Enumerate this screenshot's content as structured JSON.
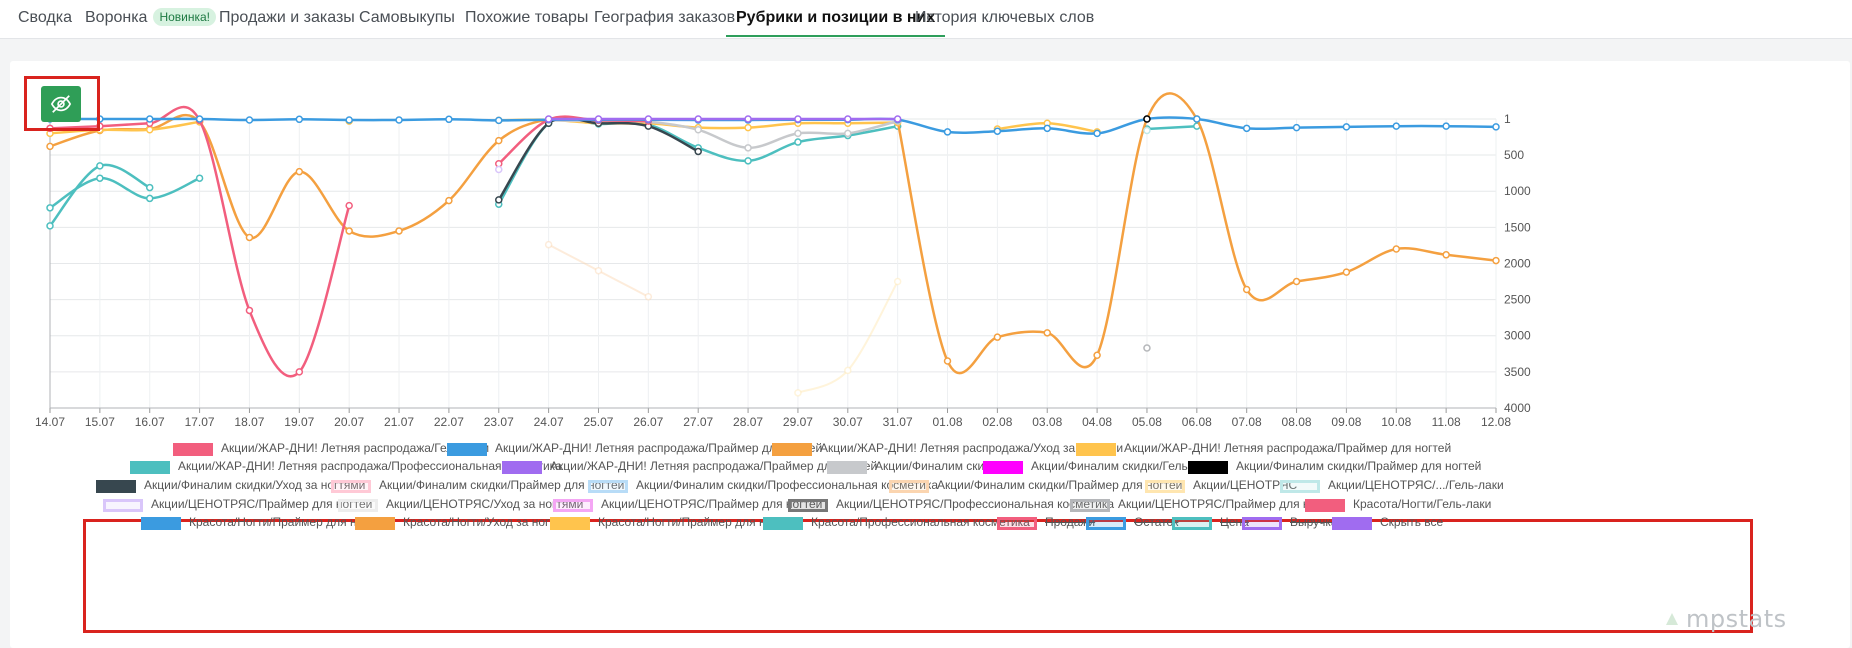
{
  "tabs": [
    {
      "label": "Сводка"
    },
    {
      "label": "Воронка",
      "badge": "Новинка!"
    },
    {
      "label": "Продажи и заказы"
    },
    {
      "label": "Самовыкупы"
    },
    {
      "label": "Похожие товары"
    },
    {
      "label": "География заказов"
    },
    {
      "label": "Рубрики и позиции в них",
      "active": true
    },
    {
      "label": "История ключевых слов"
    }
  ],
  "toggle_icon": "eye-off-icon",
  "logo": "mpstats",
  "chart_data": {
    "type": "line",
    "title": "",
    "xlabel": "",
    "ylabel": "",
    "y_reversed": true,
    "ylim": [
      1,
      4000
    ],
    "y_ticks": [
      1,
      500,
      1000,
      1500,
      2000,
      2500,
      3000,
      3500,
      4000
    ],
    "x": [
      "14.07",
      "15.07",
      "16.07",
      "17.07",
      "18.07",
      "19.07",
      "20.07",
      "21.07",
      "22.07",
      "23.07",
      "24.07",
      "25.07",
      "26.07",
      "27.07",
      "28.07",
      "29.07",
      "30.07",
      "31.07",
      "01.08",
      "02.08",
      "03.08",
      "04.08",
      "05.08",
      "06.08",
      "07.08",
      "08.08",
      "09.08",
      "10.08",
      "11.08",
      "12.08"
    ],
    "grid": true,
    "series": [
      {
        "name": "Акции/ЖАР-ДНИ! Летняя распродажа/Гель-лаки",
        "color": "#f25e7e",
        "values": [
          130,
          100,
          60,
          20,
          2650,
          3500,
          1200,
          null,
          null,
          620,
          10,
          20,
          30,
          null,
          null,
          null,
          null,
          null,
          null,
          null,
          null,
          null,
          null,
          null,
          null,
          null,
          null,
          null,
          null,
          null
        ]
      },
      {
        "name": "Акции/ЖАР-ДНИ! Летняя распродажа/Праймер для ногтей",
        "color": "#3b9be0",
        "values": [
          1,
          1,
          1,
          1,
          15,
          5,
          15,
          15,
          5,
          20,
          10,
          10,
          10,
          15,
          15,
          10,
          10,
          10,
          180,
          170,
          130,
          200,
          1,
          1,
          130,
          120,
          110,
          100,
          100,
          110
        ]
      },
      {
        "name": "Акции/ЖАР-ДНИ! Летняя распродажа/Уход за ногтями",
        "color": "#f4a040",
        "values": [
          380,
          160,
          140,
          40,
          1640,
          730,
          1550,
          1550,
          1130,
          300,
          5,
          50,
          70,
          null,
          null,
          null,
          null,
          30,
          3350,
          3020,
          2960,
          3270,
          1,
          1,
          2360,
          2250,
          2120,
          1800,
          1880,
          1960
        ]
      },
      {
        "name": "Акции/ЖАР-ДНИ! Летняя распродажа/Праймер для ногтей",
        "color": "#ffc44d",
        "values": [
          200,
          150,
          150,
          40,
          null,
          null,
          30,
          null,
          null,
          20,
          10,
          60,
          60,
          120,
          120,
          60,
          60,
          50,
          null,
          140,
          60,
          180,
          null,
          null,
          null,
          null,
          null,
          null,
          null,
          null
        ]
      },
      {
        "name": "Акции/ЖАР-ДНИ! Летняя распродажа/Профессиональная косметика",
        "color": "#4dbfbf",
        "values": [
          1480,
          650,
          950,
          null,
          null,
          null,
          null,
          null,
          null,
          1180,
          60,
          70,
          80,
          400,
          580,
          320,
          230,
          100,
          null,
          null,
          null,
          null,
          140,
          100,
          null,
          null,
          null,
          null,
          null,
          null
        ]
      },
      {
        "name": "Акции/ЖАР-ДНИ! Летняя распродажа/Праймер для ногтей",
        "color": "#a06cf0",
        "values": [
          null,
          null,
          null,
          null,
          null,
          null,
          null,
          null,
          null,
          null,
          1,
          1,
          1,
          1,
          1,
          1,
          1,
          1,
          null,
          null,
          null,
          null,
          null,
          null,
          null,
          null,
          null,
          null,
          null,
          null
        ]
      },
      {
        "name": "Акции/Финалим скидки",
        "color": "#c7c9cc",
        "values": [
          null,
          null,
          null,
          null,
          null,
          null,
          null,
          null,
          null,
          null,
          20,
          30,
          40,
          150,
          400,
          200,
          200,
          30,
          null,
          null,
          null,
          null,
          null,
          null,
          null,
          null,
          null,
          null,
          null,
          null
        ]
      },
      {
        "name": "Акции/Финалим скидки/Гель-лаки",
        "color": "#ff00ff",
        "values": [
          null,
          null,
          null,
          null,
          null,
          null,
          null,
          null,
          null,
          null,
          null,
          null,
          null,
          null,
          null,
          null,
          null,
          null,
          null,
          null,
          null,
          null,
          null,
          null,
          null,
          null,
          null,
          null,
          null,
          null
        ]
      },
      {
        "name": "Акции/Финалим скидки/Праймер для ногтей",
        "color": "#000000",
        "values": [
          null,
          null,
          null,
          null,
          null,
          null,
          null,
          null,
          null,
          null,
          null,
          null,
          null,
          null,
          null,
          null,
          null,
          null,
          null,
          null,
          null,
          null,
          1,
          null,
          null,
          null,
          null,
          null,
          null,
          null
        ]
      },
      {
        "name": "Акции/Финалим скидки/Уход за ногтями",
        "color": "#37474f",
        "values": [
          null,
          null,
          null,
          null,
          null,
          null,
          null,
          null,
          null,
          1120,
          60,
          60,
          100,
          450,
          null,
          null,
          null,
          null,
          null,
          null,
          null,
          null,
          null,
          null,
          null,
          null,
          null,
          null,
          null,
          null
        ]
      },
      {
        "name": "Акции/Финалим скидки/Праймер для ногтей",
        "color": "#ffc9d6",
        "values": [
          null,
          null,
          null,
          null,
          null,
          null,
          null,
          null,
          null,
          null,
          null,
          null,
          null,
          null,
          null,
          null,
          null,
          null,
          null,
          null,
          null,
          null,
          null,
          null,
          null,
          null,
          null,
          null,
          null,
          null
        ]
      },
      {
        "name": "Акции/Финалим скидки/Профессиональная косметика",
        "color": "#b8dcf7",
        "values": [
          null,
          null,
          null,
          null,
          null,
          null,
          null,
          null,
          null,
          null,
          null,
          null,
          null,
          null,
          null,
          null,
          null,
          null,
          null,
          null,
          null,
          null,
          null,
          null,
          null,
          null,
          null,
          null,
          null,
          null
        ]
      },
      {
        "name": "Акции/Финалим скидки/Праймер для ногтей",
        "color": "#fbd5b0",
        "values": [
          null,
          null,
          null,
          null,
          null,
          null,
          null,
          null,
          null,
          null,
          1740,
          2100,
          2460,
          null,
          null,
          null,
          null,
          null,
          null,
          null,
          null,
          null,
          null,
          null,
          null,
          null,
          null,
          null,
          null,
          null
        ]
      },
      {
        "name": "Акции/ЦЕНОТРЯС",
        "color": "#ffe6b0",
        "values": [
          null,
          null,
          null,
          null,
          null,
          null,
          null,
          null,
          null,
          null,
          null,
          null,
          null,
          null,
          null,
          3790,
          3480,
          2250,
          null,
          null,
          null,
          null,
          null,
          null,
          null,
          null,
          null,
          null,
          null,
          null
        ]
      },
      {
        "name": "Акции/ЦЕНОТРЯС/.../Гель-лаки",
        "color": "#bfe8e8",
        "values": [
          null,
          null,
          null,
          null,
          null,
          null,
          null,
          null,
          null,
          null,
          null,
          null,
          null,
          null,
          null,
          null,
          null,
          null,
          null,
          null,
          null,
          null,
          160,
          null,
          null,
          null,
          null,
          null,
          null,
          null
        ]
      },
      {
        "name": "Акции/ЦЕНОТРЯС/Праймер для ногтей",
        "color": "#d9c6fa",
        "values": [
          null,
          null,
          null,
          null,
          null,
          null,
          null,
          null,
          null,
          700,
          null,
          null,
          null,
          null,
          null,
          null,
          null,
          null,
          null,
          null,
          null,
          null,
          null,
          null,
          null,
          null,
          null,
          null,
          null,
          null
        ]
      },
      {
        "name": "Акции/ЦЕНОТРЯС/Уход за ногтями",
        "color": "#ededed",
        "values": [
          null,
          null,
          null,
          null,
          null,
          null,
          null,
          null,
          null,
          null,
          null,
          null,
          null,
          null,
          null,
          null,
          null,
          null,
          null,
          null,
          null,
          null,
          null,
          null,
          null,
          null,
          null,
          null,
          null,
          null
        ]
      },
      {
        "name": "Акции/ЦЕНОТРЯС/Праймер для ногтей",
        "color": "#f4a6f4",
        "values": [
          null,
          null,
          null,
          null,
          null,
          null,
          null,
          null,
          null,
          null,
          null,
          null,
          null,
          null,
          null,
          null,
          null,
          null,
          null,
          null,
          null,
          null,
          null,
          null,
          null,
          null,
          null,
          null,
          null,
          null
        ]
      },
      {
        "name": "Акции/ЦЕНОТРЯС/Профессиональная косметика",
        "color": "#777777",
        "values": [
          null,
          null,
          null,
          null,
          null,
          null,
          null,
          null,
          null,
          null,
          null,
          null,
          null,
          null,
          null,
          null,
          null,
          null,
          null,
          null,
          null,
          null,
          null,
          null,
          null,
          null,
          null,
          null,
          null,
          null
        ]
      },
      {
        "name": "Акции/ЦЕНОТРЯС/Праймер для ногтей",
        "color": "#b5b7ba",
        "values": [
          null,
          null,
          null,
          null,
          null,
          null,
          null,
          null,
          null,
          null,
          null,
          null,
          null,
          null,
          null,
          null,
          null,
          null,
          null,
          null,
          null,
          null,
          3170,
          null,
          null,
          null,
          null,
          null,
          null,
          null
        ]
      },
      {
        "name": "Красота/Ногти/Гель-лаки",
        "color": "#f25e7e",
        "values": [
          null,
          null,
          null,
          null,
          null,
          null,
          null,
          null,
          null,
          null,
          null,
          null,
          null,
          null,
          null,
          null,
          null,
          null,
          null,
          null,
          null,
          null,
          null,
          null,
          null,
          null,
          null,
          null,
          null,
          null
        ]
      },
      {
        "name": "Красота/Ногти/Праймер для ногтей",
        "color": "#3b9be0",
        "values": [
          null,
          null,
          null,
          null,
          null,
          null,
          null,
          null,
          null,
          null,
          null,
          null,
          null,
          null,
          null,
          null,
          null,
          null,
          null,
          null,
          null,
          null,
          null,
          null,
          null,
          null,
          null,
          null,
          null,
          null
        ]
      },
      {
        "name": "Красота/Ногти/Уход за ногтями",
        "color": "#f4a040",
        "values": [
          null,
          null,
          null,
          null,
          null,
          null,
          null,
          null,
          null,
          null,
          null,
          null,
          null,
          null,
          null,
          null,
          null,
          null,
          null,
          null,
          null,
          null,
          null,
          null,
          null,
          null,
          null,
          null,
          null,
          null
        ]
      },
      {
        "name": "Красота/Ногти/Праймер для ногтей",
        "color": "#ffc44d",
        "values": [
          null,
          null,
          null,
          null,
          null,
          null,
          null,
          null,
          null,
          null,
          null,
          null,
          null,
          null,
          null,
          null,
          null,
          null,
          null,
          null,
          null,
          null,
          null,
          null,
          null,
          null,
          null,
          null,
          null,
          null
        ]
      },
      {
        "name": "Красота/Профессиональная косметика",
        "color": "#4dbfbf",
        "values": [
          1230,
          820,
          1100,
          820,
          null,
          null,
          null,
          null,
          null,
          null,
          null,
          null,
          null,
          null,
          null,
          null,
          null,
          null,
          null,
          null,
          null,
          null,
          null,
          null,
          null,
          null,
          null,
          null,
          null,
          null
        ]
      }
    ],
    "legend_extra": [
      {
        "name": "Продажи",
        "color": "#f25e7e",
        "struck": true
      },
      {
        "name": "Остаток",
        "color": "#3b9be0",
        "struck": true
      },
      {
        "name": "Цена",
        "color": "#4dbfbf",
        "struck": true
      },
      {
        "name": "Выручка",
        "color": "#a06cf0",
        "struck": true
      },
      {
        "name": "Скрыть все",
        "color": "#a06cf0",
        "struck": false
      }
    ]
  }
}
